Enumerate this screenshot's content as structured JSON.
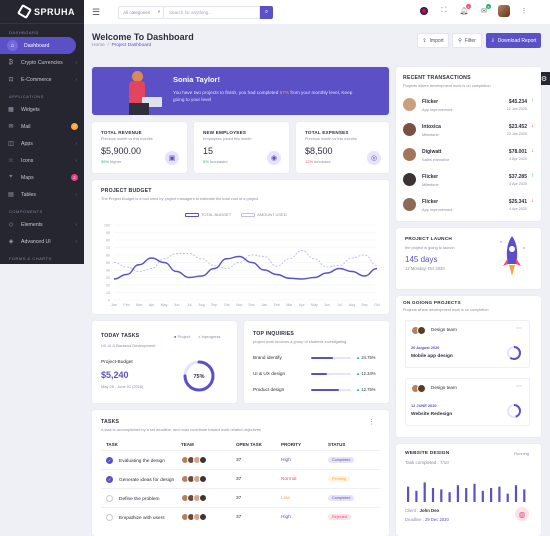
{
  "brand": {
    "name": "SPRUHA"
  },
  "sidebar": {
    "sections": [
      "DASHBOARD",
      "APPLICATIONS",
      "COMPONENTS",
      "FORMS & CHARTS"
    ],
    "items": [
      {
        "label": "Dashboard",
        "icon": "home-icon"
      },
      {
        "label": "Crypto Currencies",
        "icon": "bitcoin-icon"
      },
      {
        "label": "E-Commerce",
        "icon": "cart-icon"
      },
      {
        "label": "Widgets",
        "icon": "grid-icon"
      },
      {
        "label": "Mail",
        "icon": "mail-icon",
        "badge": "2"
      },
      {
        "label": "Apps",
        "icon": "apps-icon"
      },
      {
        "label": "Icons",
        "icon": "star-icon"
      },
      {
        "label": "Maps",
        "icon": "map-icon",
        "badge": "2"
      },
      {
        "label": "Tables",
        "icon": "table-icon"
      },
      {
        "label": "Elements",
        "icon": "layers-icon"
      },
      {
        "label": "Advanced UI",
        "icon": "advanced-icon"
      }
    ]
  },
  "topbar": {
    "category": "All categories",
    "search_placeholder": "Search for anything...",
    "notif_count": "3",
    "msg_count": "5"
  },
  "header": {
    "title": "Welcome To Dashboard",
    "crumb_home": "Home",
    "crumb_current": "Project Dashboard",
    "import": "Import",
    "filter": "Filter",
    "download": "Download Report"
  },
  "welcome": {
    "name": "Sonia Taylor!",
    "text_a": "You have two projects to finish, you had completed ",
    "pct": "57%",
    "text_b": " from your monthly level, Keep going to your level"
  },
  "stats": [
    {
      "title": "TOTAL REVENUE",
      "sub": "Previous month vs this months",
      "value": "$5,900.00",
      "change": "55%",
      "dir": "higher"
    },
    {
      "title": "NEW EMPLOYEES",
      "sub": "Employees joined this month",
      "value": "15",
      "change": "5%",
      "dir": "Increased"
    },
    {
      "title": "TOTAL EXPENSES",
      "sub": "Previous month vs this months",
      "value": "$8,500",
      "change": "12%",
      "dir": "decrease"
    }
  ],
  "budget": {
    "title": "PROJECT BUDGET",
    "sub": "The Project Budget is a tool used by project managers to estimate the total cost of a project",
    "legend_a": "TOTAL BUDGET",
    "legend_b": "AMOUNT USED"
  },
  "chart_data": {
    "type": "line",
    "x": [
      "Jan",
      "Feb",
      "Mar",
      "Apr",
      "May",
      "Jun",
      "Jul",
      "Aug",
      "Sep",
      "Oct",
      "Nov",
      "Dec",
      "Jan",
      "Feb",
      "Mar",
      "Apr",
      "May",
      "Jun",
      "Jul",
      "Aug",
      "Sep",
      "Oct"
    ],
    "ylim": [
      0,
      100
    ],
    "yticks": [
      "100",
      "90",
      "80",
      "70",
      "60",
      "50",
      "40",
      "30",
      "20",
      "10",
      "0"
    ],
    "series": [
      {
        "name": "TOTAL BUDGET",
        "values": [
          28,
          34,
          47,
          56,
          50,
          38,
          30,
          32,
          42,
          55,
          58,
          50,
          40,
          34,
          29,
          28,
          30,
          36,
          42,
          38,
          32,
          42
        ],
        "color": "#5b50c6"
      },
      {
        "name": "AMOUNT USED",
        "values": [
          50,
          44,
          38,
          42,
          55,
          62,
          62,
          55,
          46,
          42,
          50,
          60,
          58,
          45,
          55,
          66,
          55,
          44,
          46,
          56,
          60,
          46
        ],
        "color": "#c4bfef"
      }
    ]
  },
  "today": {
    "title": "TODAY TASKS",
    "sub": "UX UI & Backend Development",
    "leg_a": "Project",
    "leg_b": "Inprogress",
    "label": "Project-Budget",
    "value": "$5,240",
    "date": "May 28 - June 01 (2018)",
    "pct": "75%"
  },
  "inquiries": {
    "title": "TOP INQUIRIES",
    "sub": "project work involves a group of students investigating",
    "rows": [
      {
        "label": "Brand identify",
        "pct": "24.75%",
        "fill": 0.55
      },
      {
        "label": "UI & UX design",
        "pct": "12.34%",
        "fill": 0.4
      },
      {
        "label": "Product design",
        "pct": "12.75%",
        "fill": 0.7
      }
    ]
  },
  "tasks": {
    "title": "TASKS",
    "sub": "A task is accomplished by a set deadline, and must contribute toward work-related objectives",
    "cols": [
      "TASK",
      "TEAM",
      "OPEN TASK",
      "PRORITY",
      "STATUS"
    ],
    "rows": [
      {
        "task": "Evaluating the design",
        "open": "37",
        "priority": "High",
        "status": "Completed",
        "done": true
      },
      {
        "task": "Generate ideas for design",
        "open": "37",
        "priority": "Normal",
        "status": "Pending",
        "done": true
      },
      {
        "task": "Define the problem",
        "open": "37",
        "priority": "Low",
        "status": "Completed",
        "done": false
      },
      {
        "task": "Empathize with users",
        "open": "37",
        "priority": "High",
        "status": "Rejected",
        "done": false
      }
    ]
  },
  "transactions": {
    "title": "RECENT TRANSACTIONS",
    "sub": "Projects where development work is on completion",
    "rows": [
      {
        "name": "Flicker",
        "role": "App improvement",
        "amount": "$45.234",
        "date": "12 Jan 2020",
        "up": true
      },
      {
        "name": "Intoxica",
        "role": "Milestone",
        "amount": "$23.452",
        "date": "23 Jan 2020",
        "up": false
      },
      {
        "name": "Digiwatt",
        "role": "Sales executive",
        "amount": "$78.001",
        "date": "4 Apr 2020",
        "up": false
      },
      {
        "name": "Flicker",
        "role": "Milestone",
        "amount": "$37.285",
        "date": "4 Apr 2020",
        "up": true
      },
      {
        "name": "Flicker",
        "role": "App improvement",
        "amount": "$25.341",
        "date": "4 Apr 2020",
        "up": false
      }
    ]
  },
  "launch": {
    "title": "PROJECT LAUNCH",
    "sub": "the project is going to launch",
    "days": "145 days",
    "date": "12 Monday, Oct 2020"
  },
  "ongoing": {
    "title": "ON GOIONG PROJECTS",
    "sub": "Projects where development work is on completion",
    "items": [
      {
        "label": "Design team",
        "date": "20 August 2020",
        "name": "Mobile app design",
        "fill": 0.6
      },
      {
        "label": "Design team",
        "date": "12 JUNE 2020",
        "name": "Website Redesign",
        "fill": 0.45
      }
    ]
  },
  "website": {
    "title": "WEBSITE DESIGN",
    "status": "Running",
    "completed": "Task completed : 7/10",
    "client_label": "Client :",
    "client": "John Deo",
    "deadline_label": "Deadline :",
    "deadline": "29 Dec 2020",
    "bars": [
      0.55,
      0.4,
      0.7,
      0.5,
      0.45,
      0.35,
      0.6,
      0.5,
      0.65,
      0.4,
      0.5,
      0.55,
      0.3,
      0.6,
      0.45
    ]
  },
  "colors": {
    "accent": "#5b50c6",
    "green": "#22b573",
    "red": "#f14d6d",
    "orange": "#f7a83a",
    "pink": "#e83e8c"
  }
}
